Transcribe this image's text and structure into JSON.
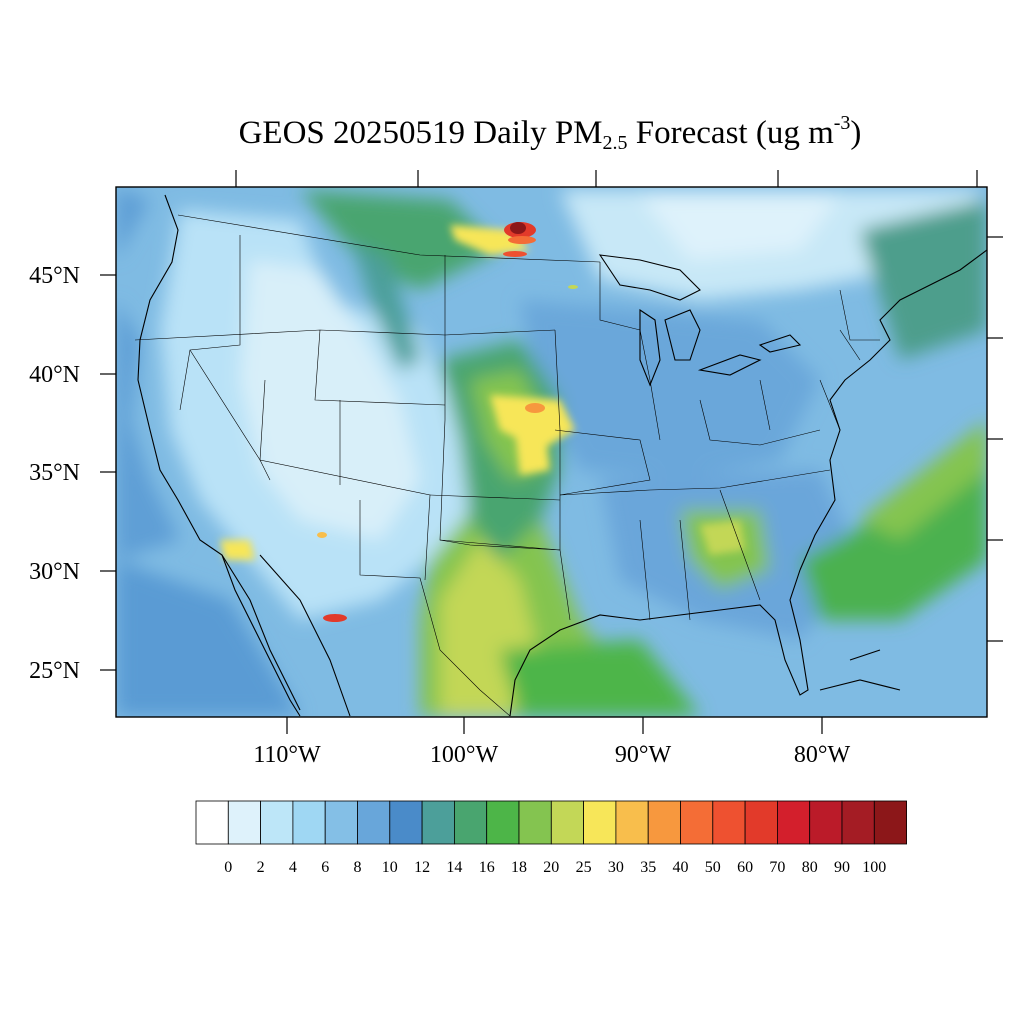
{
  "title": {
    "prefix": "GEOS 20250519 Daily PM",
    "subscript": "2.5",
    "middle": " Forecast (ug m",
    "superscript": "-3",
    "suffix": ")"
  },
  "map": {
    "region": "Contiguous United States",
    "latitude_labels": [
      "45°N",
      "40°N",
      "35°N",
      "30°N",
      "25°N"
    ],
    "longitude_labels": [
      "110°W",
      "100°W",
      "90°W",
      "80°W"
    ]
  },
  "colorbar": {
    "labels": [
      "0",
      "2",
      "4",
      "6",
      "8",
      "10",
      "12",
      "14",
      "16",
      "18",
      "20",
      "25",
      "30",
      "35",
      "40",
      "50",
      "60",
      "70",
      "80",
      "90",
      "100"
    ],
    "colors": [
      "#ffffff",
      "#def2fb",
      "#bde6f8",
      "#9fd7f3",
      "#84bfe6",
      "#68a6da",
      "#4a8bc9",
      "#4c9f9a",
      "#49a56f",
      "#4db548",
      "#84c450",
      "#c3d757",
      "#f7e659",
      "#f8be4c",
      "#f7983e",
      "#f46d36",
      "#ee5130",
      "#e23a2a",
      "#d31f2c",
      "#bb1b29",
      "#a41c24",
      "#8c1719"
    ]
  }
}
